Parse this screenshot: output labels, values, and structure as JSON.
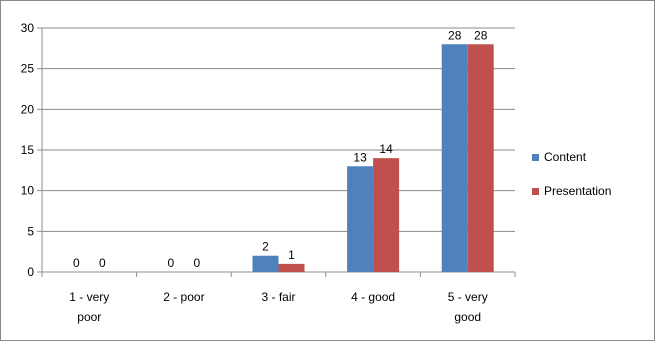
{
  "chart_data": {
    "type": "bar",
    "categories": [
      "1 - very poor",
      "2 - poor",
      "3 - fair",
      "4 - good",
      "5 - very good"
    ],
    "category_lines": [
      [
        "1 - very",
        "poor"
      ],
      [
        "2 - poor"
      ],
      [
        "3 - fair"
      ],
      [
        "4 - good"
      ],
      [
        "5 - very",
        "good"
      ]
    ],
    "series": [
      {
        "name": "Content",
        "values": [
          0,
          0,
          2,
          13,
          28
        ],
        "color": "#4F81BD"
      },
      {
        "name": "Presentation",
        "values": [
          0,
          0,
          1,
          14,
          28
        ],
        "color": "#C0504D"
      }
    ],
    "ylim": [
      0,
      30
    ],
    "yticks": [
      0,
      5,
      10,
      15,
      20,
      25,
      30
    ],
    "grid": true,
    "legend_position": "right",
    "data_labels": true
  }
}
